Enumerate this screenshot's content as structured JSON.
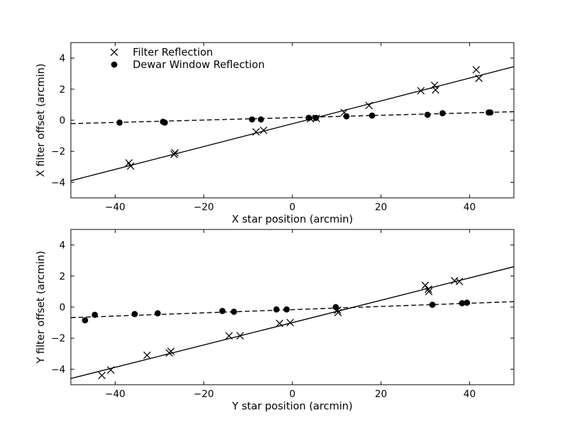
{
  "chart_data": [
    {
      "type": "scatter",
      "xlabel": "X star position (arcmin)",
      "ylabel": "X filter offset (arcmin)",
      "xlim": [
        -50,
        50
      ],
      "ylim": [
        -5,
        5
      ],
      "xticks": [
        -40,
        -20,
        0,
        20,
        40
      ],
      "yticks": [
        -4,
        -2,
        0,
        2,
        4
      ],
      "xtick_labels": [
        "−40",
        "−20",
        "0",
        "20",
        "40"
      ],
      "ytick_labels": [
        "−4",
        "−2",
        "0",
        "2",
        "4"
      ],
      "legend": {
        "placement": "top-left",
        "entries": [
          "Filter Reflection",
          "Dewar Window Reflection"
        ]
      },
      "series": [
        {
          "name": "Filter Reflection",
          "marker": "x",
          "points": [
            [
              -36.9,
              -2.75
            ],
            [
              -36.5,
              -2.95
            ],
            [
              -26.7,
              -2.2
            ],
            [
              -26.5,
              -2.1
            ],
            [
              -8.2,
              -0.75
            ],
            [
              -6.5,
              -0.65
            ],
            [
              4.1,
              0.1
            ],
            [
              5.4,
              0.12
            ],
            [
              11.7,
              0.5
            ],
            [
              17.3,
              0.95
            ],
            [
              29.0,
              1.9
            ],
            [
              32.1,
              2.25
            ],
            [
              32.3,
              1.95
            ],
            [
              41.5,
              3.25
            ],
            [
              42.1,
              2.7
            ]
          ]
        },
        {
          "name": "Dewar Window Reflection",
          "marker": "o",
          "points": [
            [
              -39.0,
              -0.15
            ],
            [
              -29.2,
              -0.1
            ],
            [
              -28.8,
              -0.15
            ],
            [
              -9.1,
              0.05
            ],
            [
              -7.1,
              0.05
            ],
            [
              3.7,
              0.15
            ],
            [
              5.3,
              0.15
            ],
            [
              12.2,
              0.25
            ],
            [
              18.0,
              0.3
            ],
            [
              30.5,
              0.35
            ],
            [
              33.9,
              0.45
            ],
            [
              44.3,
              0.5
            ],
            [
              44.7,
              0.5
            ]
          ]
        }
      ],
      "fit_lines": [
        {
          "series": "Filter Reflection",
          "style": "solid",
          "points": [
            [
              -50,
              -3.9
            ],
            [
              50,
              3.45
            ]
          ]
        },
        {
          "series": "Dewar Window Reflection",
          "style": "dashed",
          "points": [
            [
              -50,
              -0.22
            ],
            [
              50,
              0.55
            ]
          ]
        }
      ]
    },
    {
      "type": "scatter",
      "xlabel": "Y star position (arcmin)",
      "ylabel": "Y filter offset (arcmin)",
      "xlim": [
        -50,
        50
      ],
      "ylim": [
        -5,
        5
      ],
      "xticks": [
        -40,
        -20,
        0,
        20,
        40
      ],
      "yticks": [
        -4,
        -2,
        0,
        2,
        4
      ],
      "xtick_labels": [
        "−40",
        "−20",
        "0",
        "20",
        "40"
      ],
      "ytick_labels": [
        "−4",
        "−2",
        "0",
        "2",
        "4"
      ],
      "series": [
        {
          "name": "Filter Reflection",
          "marker": "x",
          "points": [
            [
              -43.0,
              -4.4
            ],
            [
              -41.0,
              -4.05
            ],
            [
              -32.8,
              -3.1
            ],
            [
              -27.8,
              -2.95
            ],
            [
              -27.4,
              -2.85
            ],
            [
              -14.3,
              -1.85
            ],
            [
              -11.8,
              -1.85
            ],
            [
              -2.9,
              -1.05
            ],
            [
              -0.5,
              -1.0
            ],
            [
              10.2,
              -0.2
            ],
            [
              10.3,
              -0.35
            ],
            [
              30.0,
              1.4
            ],
            [
              30.7,
              1.15
            ],
            [
              30.8,
              1.0
            ],
            [
              36.6,
              1.7
            ],
            [
              37.7,
              1.65
            ]
          ]
        },
        {
          "name": "Dewar Window Reflection",
          "marker": "o",
          "points": [
            [
              -46.8,
              -0.85
            ],
            [
              -44.6,
              -0.5
            ],
            [
              -35.6,
              -0.45
            ],
            [
              -30.4,
              -0.4
            ],
            [
              -15.8,
              -0.25
            ],
            [
              -13.2,
              -0.3
            ],
            [
              -3.6,
              -0.15
            ],
            [
              -1.3,
              -0.15
            ],
            [
              9.8,
              0.0
            ],
            [
              31.6,
              0.15
            ],
            [
              38.3,
              0.25
            ],
            [
              39.4,
              0.28
            ]
          ]
        }
      ],
      "fit_lines": [
        {
          "series": "Filter Reflection",
          "style": "solid",
          "points": [
            [
              -50,
              -4.6
            ],
            [
              50,
              2.6
            ]
          ]
        },
        {
          "series": "Dewar Window Reflection",
          "style": "dashed",
          "points": [
            [
              -50,
              -0.68
            ],
            [
              50,
              0.35
            ]
          ]
        }
      ]
    }
  ]
}
